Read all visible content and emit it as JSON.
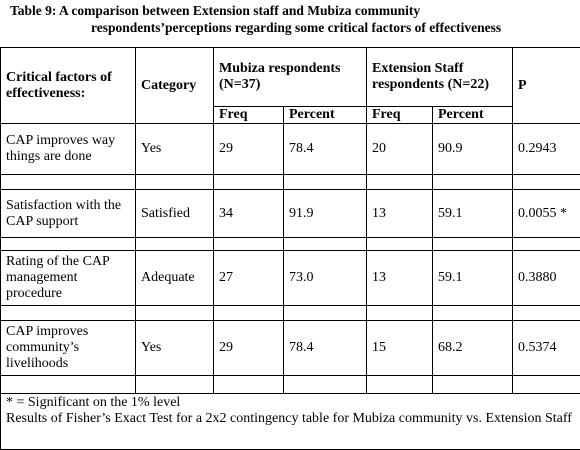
{
  "title": [
    "Table 9: A comparison between Extension staff and Mubiza community",
    "respondents’perceptions regarding some critical factors of effectiveness"
  ],
  "table": {
    "header": {
      "factor": "Critical factors of effectiveness:",
      "category": "Category",
      "group1": "Mubiza respondents (N=37)",
      "group2": "Extension Staff respondents (N=22)",
      "p": "P",
      "sub": [
        "Freq",
        "Percent",
        "Freq",
        "Percent"
      ]
    },
    "rows": [
      [
        "CAP improves way things are done",
        "Yes",
        "29",
        "78.4",
        "20",
        "90.9",
        "0.2943"
      ],
      [
        "Satisfaction with the CAP support",
        "Satisfied",
        "34",
        "91.9",
        "13",
        "59.1",
        "0.0055 *"
      ],
      [
        "Rating of  the CAP management procedure",
        "Adequate",
        "27",
        "73.0",
        "13",
        "59.1",
        "0.3880"
      ],
      [
        "CAP improves community’s livelihoods",
        "Yes",
        "29",
        "78.4",
        "15",
        "68.2",
        "0.5374"
      ]
    ]
  },
  "footnotes": [
    "* = Significant on the 1% level",
    "Results of Fisher’s Exact Test for a 2x2 contingency table for Mubiza community vs. Extension Staff"
  ]
}
